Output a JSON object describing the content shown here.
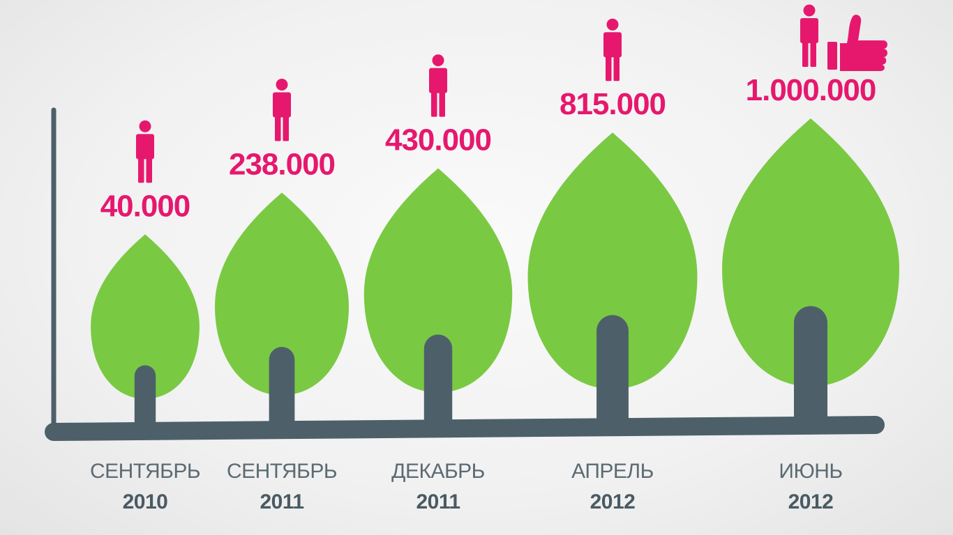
{
  "colors": {
    "leaf": "#7ac943",
    "trunk": "#4d6069",
    "value": "#e6186e",
    "month": "#5c6a72",
    "year": "#4a5a63"
  },
  "icons": {
    "person": "person-icon",
    "like": "thumbs-up-icon"
  },
  "chart_data": {
    "type": "bar",
    "title": "",
    "xlabel": "",
    "ylabel": "",
    "categories": [
      {
        "month": "СЕНТЯБРЬ",
        "year": "2010"
      },
      {
        "month": "СЕНТЯБРЬ",
        "year": "2011"
      },
      {
        "month": "ДЕКАБРЬ",
        "year": "2011"
      },
      {
        "month": "АПРЕЛЬ",
        "year": "2012"
      },
      {
        "month": "ИЮНЬ",
        "year": "2012"
      }
    ],
    "values": [
      40000,
      238000,
      430000,
      815000,
      1000000
    ],
    "value_labels": [
      "40.000",
      "238.000",
      "430.000",
      "815.000",
      "1.000.000"
    ],
    "grid": false,
    "legend": "none"
  }
}
